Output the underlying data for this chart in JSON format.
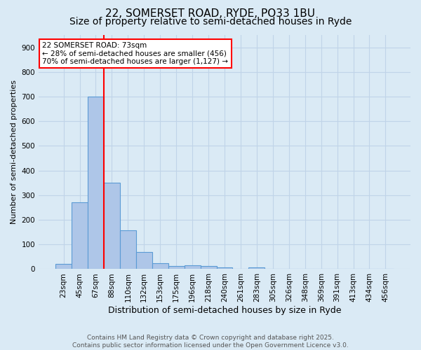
{
  "title": "22, SOMERSET ROAD, RYDE, PO33 1BU",
  "subtitle": "Size of property relative to semi-detached houses in Ryde",
  "xlabel": "Distribution of semi-detached houses by size in Ryde",
  "ylabel": "Number of semi-detached properties",
  "bin_labels": [
    "23sqm",
    "45sqm",
    "67sqm",
    "88sqm",
    "110sqm",
    "132sqm",
    "153sqm",
    "175sqm",
    "196sqm",
    "218sqm",
    "240sqm",
    "261sqm",
    "283sqm",
    "305sqm",
    "326sqm",
    "348sqm",
    "369sqm",
    "391sqm",
    "413sqm",
    "434sqm",
    "456sqm"
  ],
  "bar_heights": [
    20,
    270,
    700,
    352,
    157,
    70,
    25,
    12,
    15,
    13,
    8,
    0,
    8,
    0,
    0,
    0,
    0,
    0,
    0,
    0,
    0
  ],
  "bar_color": "#aec6e8",
  "bar_edge_color": "#5b9bd5",
  "vline_x_index": 2,
  "vline_color": "red",
  "vline_linewidth": 1.5,
  "annotation_line1": "22 SOMERSET ROAD: 73sqm",
  "annotation_line2": "← 28% of semi-detached houses are smaller (456)",
  "annotation_line3": "70% of semi-detached houses are larger (1,127) →",
  "annotation_box_color": "white",
  "annotation_box_edge": "red",
  "ylim": [
    0,
    950
  ],
  "yticks": [
    0,
    100,
    200,
    300,
    400,
    500,
    600,
    700,
    800,
    900
  ],
  "grid_color": "#c0d4e8",
  "background_color": "#daeaf5",
  "footer_text": "Contains HM Land Registry data © Crown copyright and database right 2025.\nContains public sector information licensed under the Open Government Licence v3.0.",
  "title_fontsize": 11,
  "subtitle_fontsize": 10,
  "xlabel_fontsize": 9,
  "ylabel_fontsize": 8,
  "tick_fontsize": 7.5,
  "annotation_fontsize": 7.5,
  "footer_fontsize": 6.5
}
